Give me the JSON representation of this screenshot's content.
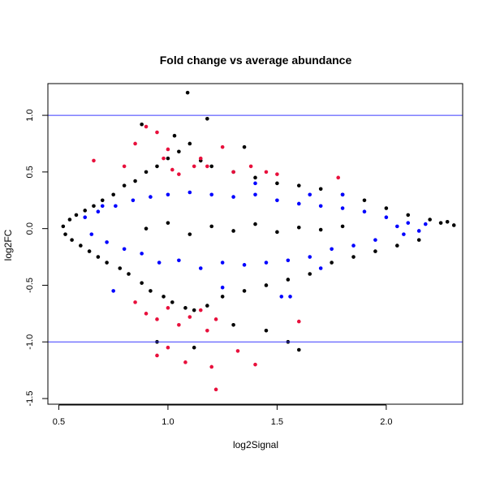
{
  "chart_data": {
    "type": "scatter",
    "title": "Fold change vs average abundance",
    "xlabel": "log2Signal",
    "ylabel": "log2FC",
    "xlim": [
      0.45,
      2.35
    ],
    "ylim": [
      -1.55,
      1.28
    ],
    "xticks": [
      0.5,
      1.0,
      1.5,
      2.0
    ],
    "xtick_labels": [
      "0.5",
      "1.0",
      "1.5",
      "2.0"
    ],
    "yticks": [
      -1.5,
      -1.0,
      -0.5,
      0.0,
      0.5,
      1.0
    ],
    "ytick_labels": [
      "-1.5",
      "-1.0",
      "-0.5",
      "0.0",
      "0.5",
      "1.0"
    ],
    "hlines": [
      1.0,
      -1.0
    ],
    "grid": false,
    "colors": {
      "all_points": "#000000",
      "highlight_blue": "#0000ff",
      "highlight_red": "#e8103c",
      "reference_lines": "#3a3aff"
    },
    "series": [
      {
        "role": "all",
        "color": "#000000",
        "points": [
          [
            0.52,
            0.02
          ],
          [
            0.53,
            -0.05
          ],
          [
            0.55,
            0.08
          ],
          [
            0.56,
            -0.1
          ],
          [
            0.58,
            0.12
          ],
          [
            0.6,
            -0.15
          ],
          [
            0.62,
            0.16
          ],
          [
            0.64,
            -0.2
          ],
          [
            0.66,
            0.2
          ],
          [
            0.68,
            -0.25
          ],
          [
            0.7,
            0.25
          ],
          [
            0.72,
            -0.3
          ],
          [
            0.75,
            0.3
          ],
          [
            0.78,
            -0.35
          ],
          [
            0.8,
            0.38
          ],
          [
            0.82,
            -0.4
          ],
          [
            0.85,
            0.42
          ],
          [
            0.88,
            -0.48
          ],
          [
            0.9,
            0.5
          ],
          [
            0.92,
            -0.55
          ],
          [
            0.95,
            0.55
          ],
          [
            0.98,
            -0.6
          ],
          [
            1.0,
            0.62
          ],
          [
            1.02,
            -0.65
          ],
          [
            1.05,
            0.68
          ],
          [
            1.08,
            -0.7
          ],
          [
            1.1,
            0.75
          ],
          [
            1.12,
            -0.72
          ],
          [
            1.15,
            0.6
          ],
          [
            1.18,
            -0.68
          ],
          [
            1.2,
            0.55
          ],
          [
            1.25,
            -0.6
          ],
          [
            1.3,
            0.5
          ],
          [
            1.35,
            -0.55
          ],
          [
            1.4,
            0.45
          ],
          [
            1.45,
            -0.5
          ],
          [
            1.5,
            0.4
          ],
          [
            1.55,
            -0.45
          ],
          [
            1.6,
            0.38
          ],
          [
            1.65,
            -0.4
          ],
          [
            1.7,
            0.35
          ],
          [
            1.75,
            -0.3
          ],
          [
            1.8,
            0.3
          ],
          [
            1.85,
            -0.25
          ],
          [
            1.9,
            0.25
          ],
          [
            1.95,
            -0.2
          ],
          [
            2.0,
            0.18
          ],
          [
            2.05,
            -0.15
          ],
          [
            2.1,
            0.12
          ],
          [
            2.15,
            -0.1
          ],
          [
            2.2,
            0.08
          ],
          [
            2.25,
            0.05
          ],
          [
            2.28,
            0.06
          ],
          [
            2.31,
            0.03
          ],
          [
            1.09,
            1.2
          ],
          [
            1.18,
            0.97
          ],
          [
            0.88,
            0.92
          ],
          [
            1.03,
            0.82
          ],
          [
            1.35,
            0.72
          ],
          [
            1.6,
            -1.07
          ],
          [
            1.55,
            -1.0
          ],
          [
            1.45,
            -0.9
          ],
          [
            0.95,
            -1.0
          ],
          [
            1.12,
            -1.05
          ],
          [
            1.3,
            -0.85
          ],
          [
            0.9,
            0.0
          ],
          [
            1.0,
            0.05
          ],
          [
            1.1,
            -0.05
          ],
          [
            1.2,
            0.02
          ],
          [
            1.3,
            -0.02
          ],
          [
            1.4,
            0.04
          ],
          [
            1.5,
            -0.03
          ],
          [
            1.6,
            0.01
          ],
          [
            1.7,
            -0.01
          ],
          [
            1.8,
            0.02
          ]
        ]
      },
      {
        "role": "highlight",
        "color": "#0000ff",
        "points": [
          [
            0.62,
            0.1
          ],
          [
            0.65,
            -0.05
          ],
          [
            0.68,
            0.15
          ],
          [
            0.72,
            -0.12
          ],
          [
            0.76,
            0.2
          ],
          [
            0.8,
            -0.18
          ],
          [
            0.84,
            0.25
          ],
          [
            0.88,
            -0.22
          ],
          [
            0.92,
            0.28
          ],
          [
            0.96,
            -0.3
          ],
          [
            1.0,
            0.3
          ],
          [
            1.05,
            -0.28
          ],
          [
            1.1,
            0.32
          ],
          [
            1.15,
            -0.35
          ],
          [
            1.2,
            0.3
          ],
          [
            1.25,
            -0.3
          ],
          [
            1.3,
            0.28
          ],
          [
            1.35,
            -0.32
          ],
          [
            1.4,
            0.3
          ],
          [
            1.45,
            -0.3
          ],
          [
            1.5,
            0.25
          ],
          [
            1.55,
            -0.28
          ],
          [
            1.6,
            0.22
          ],
          [
            1.65,
            -0.25
          ],
          [
            1.7,
            0.2
          ],
          [
            1.75,
            -0.18
          ],
          [
            1.8,
            0.18
          ],
          [
            1.85,
            -0.15
          ],
          [
            1.9,
            0.15
          ],
          [
            1.95,
            -0.1
          ],
          [
            2.0,
            0.1
          ],
          [
            2.05,
            0.02
          ],
          [
            2.1,
            0.05
          ],
          [
            2.15,
            -0.02
          ],
          [
            2.18,
            0.04
          ],
          [
            1.52,
            -0.6
          ],
          [
            1.56,
            -0.6
          ],
          [
            1.4,
            0.4
          ],
          [
            0.75,
            -0.55
          ],
          [
            1.25,
            -0.52
          ],
          [
            1.8,
            0.3
          ],
          [
            1.65,
            0.3
          ],
          [
            1.7,
            -0.35
          ],
          [
            2.08,
            -0.05
          ],
          [
            0.7,
            0.2
          ]
        ]
      },
      {
        "role": "highlight",
        "color": "#e8103c",
        "points": [
          [
            0.66,
            0.6
          ],
          [
            0.8,
            0.55
          ],
          [
            0.85,
            0.75
          ],
          [
            0.9,
            0.9
          ],
          [
            0.95,
            0.85
          ],
          [
            1.0,
            0.7
          ],
          [
            1.02,
            0.52
          ],
          [
            1.05,
            0.48
          ],
          [
            1.15,
            0.62
          ],
          [
            1.18,
            0.55
          ],
          [
            1.25,
            0.72
          ],
          [
            1.3,
            0.5
          ],
          [
            1.38,
            0.55
          ],
          [
            1.45,
            0.5
          ],
          [
            1.5,
            0.48
          ],
          [
            1.78,
            0.45
          ],
          [
            0.85,
            -0.65
          ],
          [
            0.9,
            -0.75
          ],
          [
            0.95,
            -0.8
          ],
          [
            1.0,
            -0.7
          ],
          [
            1.05,
            -0.85
          ],
          [
            1.1,
            -0.78
          ],
          [
            1.15,
            -0.72
          ],
          [
            1.18,
            -0.9
          ],
          [
            1.22,
            -0.8
          ],
          [
            0.95,
            -1.12
          ],
          [
            1.0,
            -1.05
          ],
          [
            1.08,
            -1.18
          ],
          [
            1.2,
            -1.22
          ],
          [
            1.22,
            -1.42
          ],
          [
            1.32,
            -1.08
          ],
          [
            1.4,
            -1.2
          ],
          [
            1.6,
            -0.82
          ],
          [
            1.12,
            0.55
          ],
          [
            0.98,
            0.62
          ]
        ]
      }
    ]
  }
}
